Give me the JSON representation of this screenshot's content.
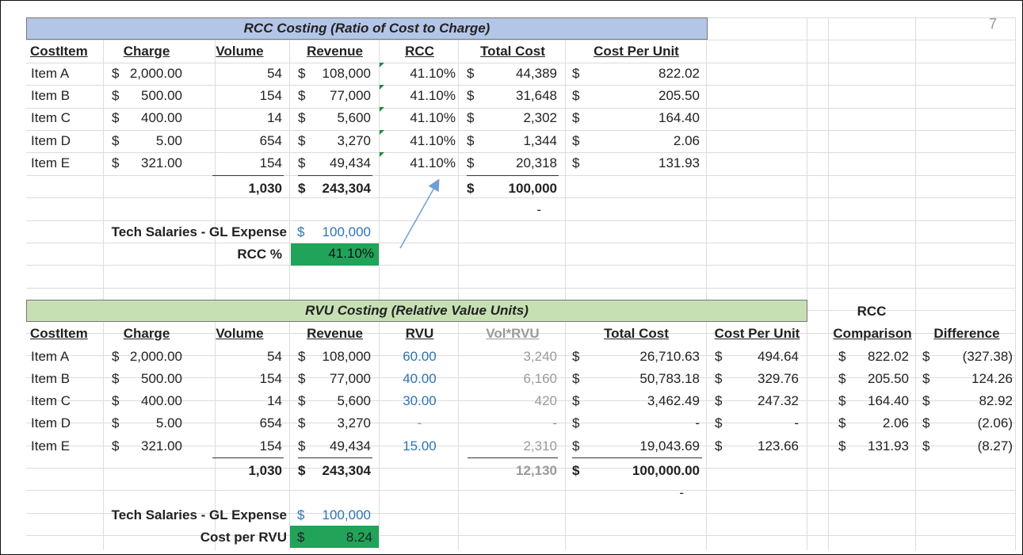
{
  "page_number": "7",
  "rcc": {
    "title": "RCC Costing (Ratio of Cost to Charge)",
    "headers": {
      "item": "CostItem",
      "charge": "Charge",
      "volume": "Volume",
      "revenue": "Revenue",
      "rcc": "RCC",
      "total": "Total Cost",
      "cpu": "Cost Per Unit"
    },
    "rows": [
      {
        "item": "Item A",
        "charge_cur": "$",
        "charge": "2,000.00",
        "volume": "54",
        "rev_cur": "$",
        "revenue": "108,000",
        "rcc": "41.10%",
        "tot_cur": "$",
        "total": "44,389",
        "cpu_cur": "$",
        "cpu": "822.02"
      },
      {
        "item": "Item B",
        "charge_cur": "$",
        "charge": "500.00",
        "volume": "154",
        "rev_cur": "$",
        "revenue": "77,000",
        "rcc": "41.10%",
        "tot_cur": "$",
        "total": "31,648",
        "cpu_cur": "$",
        "cpu": "205.50"
      },
      {
        "item": "Item C",
        "charge_cur": "$",
        "charge": "400.00",
        "volume": "14",
        "rev_cur": "$",
        "revenue": "5,600",
        "rcc": "41.10%",
        "tot_cur": "$",
        "total": "2,302",
        "cpu_cur": "$",
        "cpu": "164.40"
      },
      {
        "item": "Item D",
        "charge_cur": "$",
        "charge": "5.00",
        "volume": "654",
        "rev_cur": "$",
        "revenue": "3,270",
        "rcc": "41.10%",
        "tot_cur": "$",
        "total": "1,344",
        "cpu_cur": "$",
        "cpu": "2.06"
      },
      {
        "item": "Item E",
        "charge_cur": "$",
        "charge": "321.00",
        "volume": "154",
        "rev_cur": "$",
        "revenue": "49,434",
        "rcc": "41.10%",
        "tot_cur": "$",
        "total": "20,318",
        "cpu_cur": "$",
        "cpu": "131.93"
      }
    ],
    "totals": {
      "volume": "1,030",
      "rev_cur": "$",
      "revenue": "243,304",
      "tot_cur": "$",
      "total": "100,000"
    },
    "dash": "-",
    "expense_label": "Tech Salaries  - GL Expense",
    "expense_cur": "$",
    "expense_value": "100,000",
    "rcc_label": "RCC %",
    "rcc_value": "41.10%"
  },
  "rvu": {
    "title": "RVU Costing (Relative Value Units)",
    "comparison_top": "RCC",
    "headers": {
      "item": "CostItem",
      "charge": "Charge",
      "volume": "Volume",
      "revenue": "Revenue",
      "rvu": "RVU",
      "volrvu": "Vol*RVU",
      "total": "Total Cost",
      "cpu": "Cost Per Unit",
      "comparison": "Comparison",
      "difference": "Difference"
    },
    "rows": [
      {
        "item": "Item A",
        "charge_cur": "$",
        "charge": "2,000.00",
        "volume": "54",
        "rev_cur": "$",
        "revenue": "108,000",
        "rvu": "60.00",
        "volrvu": "3,240",
        "tot_cur": "$",
        "total": "26,710.63",
        "cpu_cur": "$",
        "cpu": "494.64",
        "cmp_cur": "$",
        "comparison": "822.02",
        "diff_cur": "$",
        "difference": "(327.38)"
      },
      {
        "item": "Item B",
        "charge_cur": "$",
        "charge": "500.00",
        "volume": "154",
        "rev_cur": "$",
        "revenue": "77,000",
        "rvu": "40.00",
        "volrvu": "6,160",
        "tot_cur": "$",
        "total": "50,783.18",
        "cpu_cur": "$",
        "cpu": "329.76",
        "cmp_cur": "$",
        "comparison": "205.50",
        "diff_cur": "$",
        "difference": "124.26"
      },
      {
        "item": "Item C",
        "charge_cur": "$",
        "charge": "400.00",
        "volume": "14",
        "rev_cur": "$",
        "revenue": "5,600",
        "rvu": "30.00",
        "volrvu": "420",
        "tot_cur": "$",
        "total": "3,462.49",
        "cpu_cur": "$",
        "cpu": "247.32",
        "cmp_cur": "$",
        "comparison": "164.40",
        "diff_cur": "$",
        "difference": "82.92"
      },
      {
        "item": "Item D",
        "charge_cur": "$",
        "charge": "5.00",
        "volume": "654",
        "rev_cur": "$",
        "revenue": "3,270",
        "rvu": "-",
        "volrvu": "-",
        "tot_cur": "$",
        "total": "-",
        "cpu_cur": "$",
        "cpu": "-",
        "cmp_cur": "$",
        "comparison": "2.06",
        "diff_cur": "$",
        "difference": "(2.06)"
      },
      {
        "item": "Item E",
        "charge_cur": "$",
        "charge": "321.00",
        "volume": "154",
        "rev_cur": "$",
        "revenue": "49,434",
        "rvu": "15.00",
        "volrvu": "2,310",
        "tot_cur": "$",
        "total": "19,043.69",
        "cpu_cur": "$",
        "cpu": "123.66",
        "cmp_cur": "$",
        "comparison": "131.93",
        "diff_cur": "$",
        "difference": "(8.27)"
      }
    ],
    "totals": {
      "volume": "1,030",
      "rev_cur": "$",
      "revenue": "243,304",
      "volrvu": "12,130",
      "tot_cur": "$",
      "total": "100,000.00"
    },
    "dash": "-",
    "expense_label": "Tech Salaries  - GL Expense",
    "expense_cur": "$",
    "expense_value": "100,000",
    "cpr_label": "Cost per RVU",
    "cpr_cur": "$",
    "cpr_value": "8.24"
  },
  "colors": {
    "rcc_banner": "#b4c6e7",
    "rvu_banner": "#c6e0b4",
    "input_blue": "#2e74b5",
    "highlight_green": "#21a35a",
    "arrow": "#6f9ed6"
  }
}
